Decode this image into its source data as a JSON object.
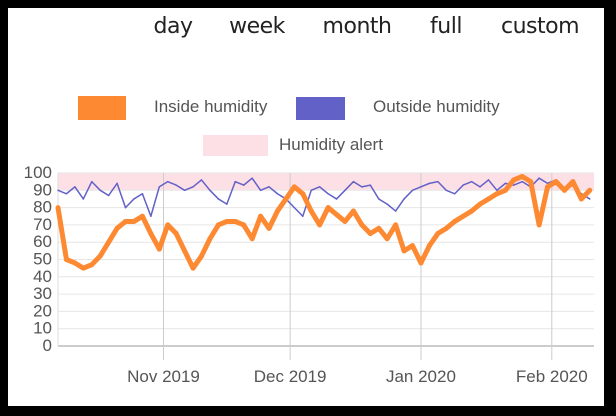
{
  "range_buttons": [
    "day",
    "week",
    "month",
    "full",
    "custom"
  ],
  "legend": [
    {
      "label": "Inside humidity",
      "color": "#fd8a33"
    },
    {
      "label": "Outside humidity",
      "color": "#6261c8"
    },
    {
      "label": "Humidity alert",
      "color": "#fde0e6"
    }
  ],
  "chart_data": {
    "type": "line",
    "title": "",
    "xlabel": "",
    "ylabel": "",
    "ylim": [
      0,
      100
    ],
    "y_ticks": [
      "0",
      "10",
      "20",
      "30",
      "40",
      "50",
      "60",
      "70",
      "80",
      "90",
      "100"
    ],
    "x_ticks": [
      {
        "label": "Nov 2019",
        "date": "2019-11-01"
      },
      {
        "label": "Dec 2019",
        "date": "2019-12-01"
      },
      {
        "label": "Jan 2020",
        "date": "2020-01-01"
      },
      {
        "label": "Feb 2020",
        "date": "2020-02-01"
      }
    ],
    "xlim": [
      "2019-10-07",
      "2020-02-11"
    ],
    "grid": true,
    "legend_position": "top",
    "x_start": "2019-10-07",
    "x_step_days": 2,
    "alert_band": {
      "name": "Humidity alert",
      "from": 90,
      "to": 100,
      "color": "#fde0e6"
    },
    "series": [
      {
        "name": "Inside humidity",
        "color": "#fd8a33",
        "values": [
          80,
          50,
          48,
          45,
          47,
          52,
          60,
          68,
          72,
          72,
          75,
          65,
          56,
          70,
          65,
          55,
          45,
          52,
          62,
          70,
          72,
          72,
          70,
          62,
          75,
          68,
          78,
          85,
          92,
          88,
          78,
          70,
          80,
          76,
          72,
          78,
          70,
          65,
          68,
          62,
          70,
          55,
          58,
          48,
          58,
          65,
          68,
          72,
          75,
          78,
          82,
          85,
          88,
          90,
          96,
          98,
          95,
          70,
          92,
          95,
          90,
          95,
          85,
          90
        ]
      },
      {
        "name": "Outside humidity",
        "color": "#6261c8",
        "values": [
          90,
          88,
          92,
          85,
          95,
          90,
          87,
          94,
          80,
          85,
          88,
          75,
          92,
          95,
          93,
          90,
          92,
          96,
          90,
          85,
          82,
          95,
          93,
          97,
          90,
          92,
          88,
          85,
          80,
          75,
          90,
          92,
          88,
          85,
          90,
          95,
          92,
          93,
          85,
          82,
          78,
          85,
          90,
          92,
          94,
          95,
          90,
          88,
          93,
          95,
          92,
          96,
          90,
          94,
          93,
          95,
          92,
          97,
          94,
          96,
          90,
          93,
          88,
          85
        ]
      }
    ]
  }
}
